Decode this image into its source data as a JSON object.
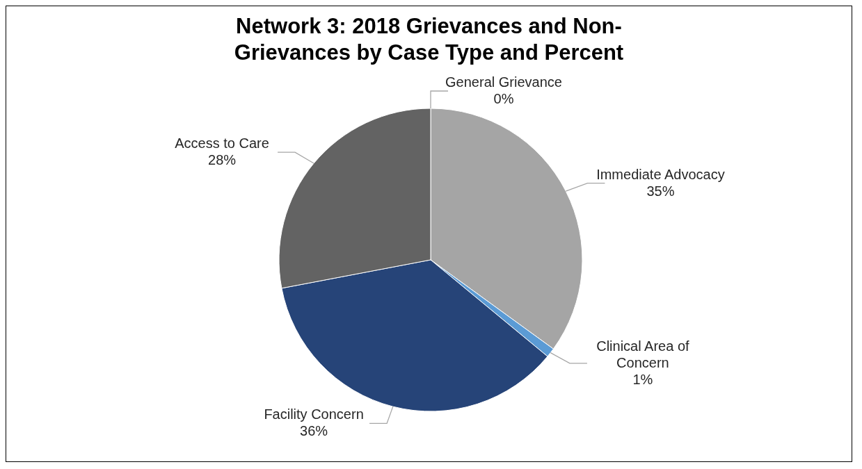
{
  "chart_data": {
    "type": "pie",
    "title": "Network 3:  2018 Grievances and Non-Grievances by Case Type and Percent",
    "categories": [
      "General Grievance",
      "Immediate Advocacy",
      "Clinical Area of Concern",
      "Facility Concern",
      "Access to Care"
    ],
    "values": [
      0,
      35,
      1,
      36,
      28
    ],
    "colors": [
      "#ffc000",
      "#a5a5a5",
      "#5b9bd5",
      "#264478",
      "#636363"
    ],
    "value_labels": [
      "0%",
      "35%",
      "1%",
      "36%",
      "28%"
    ]
  }
}
